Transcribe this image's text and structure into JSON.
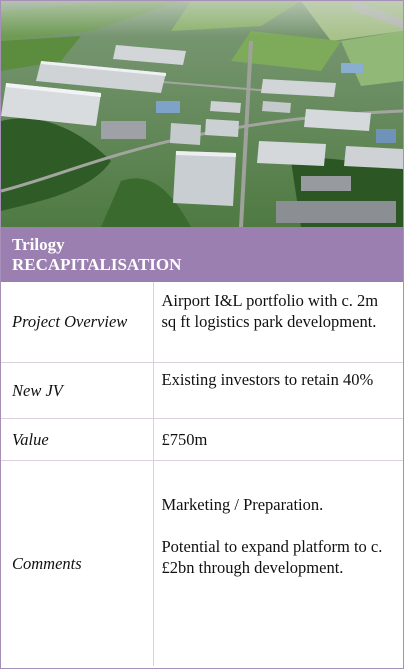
{
  "header": {
    "title_line1": "Trilogy",
    "title_line2": "RECAPITALISATION"
  },
  "photo": {
    "icon": "aerial-logistics-park-photo"
  },
  "details": [
    {
      "label": "Project Overview",
      "value": [
        "Airport I&L portfolio with c. 2m sq ft logistics park development."
      ]
    },
    {
      "label": "New JV",
      "value": [
        "Existing investors to retain 40%"
      ]
    },
    {
      "label": "Value",
      "value": [
        "£750m"
      ]
    },
    {
      "label": "Comments",
      "value": [
        "Marketing / Preparation.",
        "Potential to expand platform to c. £2bn through development."
      ]
    }
  ],
  "colors": {
    "accent": "#9b7fb0",
    "border": "#a790b7",
    "grid": "#d9d2de"
  }
}
